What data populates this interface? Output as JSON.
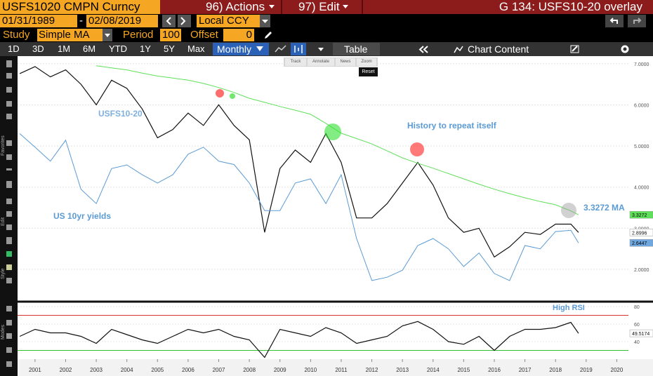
{
  "header": {
    "security": "USFS1020 CMPN Curncy",
    "actions": "96) Actions",
    "edit": "97) Edit",
    "page": "G 134: USFS10-20 overlay"
  },
  "controls": {
    "start_date": "01/31/1989",
    "date_separator": "-",
    "end_date": "02/08/2019",
    "currency": "Local CCY",
    "study_label": "Study",
    "study": "Simple MA",
    "period_label": "Period",
    "period": 100,
    "offset_label": "Offset",
    "offset": 0
  },
  "toolbar": {
    "ranges": [
      "1D",
      "3D",
      "1M",
      "6M",
      "YTD",
      "1Y",
      "5Y",
      "Max"
    ],
    "frequency": "Monthly",
    "table": "Table",
    "chart_content": "Chart Content"
  },
  "chart_tools": {
    "track": "Track",
    "annotate": "Annotate",
    "news": "News",
    "zoom": "Zoom",
    "reset": "Reset"
  },
  "sidebar": {
    "favorites": "Favorites",
    "edit": "Edit",
    "style": "Style",
    "modes": "Modes"
  },
  "chart_data": [
    {
      "type": "line",
      "x": [
        2000.5,
        2001,
        2001.5,
        2002,
        2002.5,
        2003,
        2003.5,
        2004,
        2004.5,
        2005,
        2005.5,
        2006,
        2006.5,
        2007,
        2007.5,
        2008,
        2008.5,
        2009,
        2009.5,
        2010,
        2010.5,
        2011,
        2011.5,
        2012,
        2012.5,
        2013,
        2013.5,
        2014,
        2014.5,
        2015,
        2015.5,
        2016,
        2016.5,
        2017,
        2017.5,
        2018,
        2018.5,
        2018.75
      ],
      "xlim": [
        2000.43,
        2020.38
      ],
      "ylim": [
        1.25,
        7.15
      ],
      "yticks": [
        {
          "value": 2,
          "label": "2.0000"
        },
        {
          "value": 3,
          "label": "3.0000"
        },
        {
          "value": 4,
          "label": "4.0000"
        },
        {
          "value": 5,
          "label": "5.0000"
        },
        {
          "value": 6,
          "label": "6.0000"
        },
        {
          "value": 7,
          "label": "7.0000"
        }
      ],
      "series": [
        {
          "name": "USFS10-20",
          "color": "#111111",
          "values": [
            6.76,
            6.93,
            6.68,
            6.85,
            6.5,
            6.0,
            6.6,
            6.4,
            5.9,
            5.2,
            5.4,
            5.8,
            5.5,
            6.0,
            5.5,
            5.15,
            2.9,
            4.45,
            4.9,
            4.6,
            5.3,
            4.6,
            3.25,
            3.25,
            3.6,
            4.1,
            4.6,
            4.05,
            3.25,
            2.9,
            3.0,
            2.3,
            2.55,
            2.9,
            2.85,
            3.1,
            3.1,
            2.8996
          ]
        },
        {
          "name": "US 10yr yields",
          "color": "#5b9bd5",
          "values": [
            5.3,
            4.97,
            4.63,
            5.14,
            3.95,
            3.6,
            4.45,
            4.54,
            4.3,
            4.1,
            4.3,
            4.8,
            4.97,
            4.63,
            4.55,
            4.1,
            3.43,
            3.43,
            4.1,
            4.2,
            3.6,
            4.3,
            2.75,
            1.73,
            1.81,
            1.98,
            2.58,
            2.75,
            2.5,
            2.07,
            2.4,
            1.9,
            1.73,
            2.58,
            2.5,
            2.92,
            2.95,
            2.6447
          ]
        },
        {
          "name": "3.3272 MA",
          "color": "#5fe05a",
          "values": [
            null,
            null,
            null,
            null,
            null,
            6.95,
            6.9,
            6.85,
            6.77,
            6.7,
            6.65,
            6.6,
            6.52,
            6.42,
            6.3,
            6.16,
            6.06,
            5.96,
            5.87,
            5.77,
            5.55,
            5.31,
            5.18,
            5.05,
            4.88,
            4.71,
            4.58,
            4.46,
            4.33,
            4.2,
            4.07,
            3.95,
            3.84,
            3.74,
            3.65,
            3.57,
            3.42,
            3.3272
          ]
        }
      ],
      "annotations": [
        "History to repeat itself"
      ]
    },
    {
      "type": "line",
      "x": [
        2000.5,
        2001,
        2001.5,
        2002,
        2002.5,
        2003,
        2003.5,
        2004,
        2004.5,
        2005,
        2005.5,
        2006,
        2006.5,
        2007,
        2007.5,
        2008,
        2008.5,
        2009,
        2009.5,
        2010,
        2010.5,
        2011,
        2011.5,
        2012,
        2012.5,
        2013,
        2013.5,
        2014,
        2014.5,
        2015,
        2015.5,
        2016,
        2016.5,
        2017,
        2017.5,
        2018,
        2018.5,
        2018.75
      ],
      "xlim": [
        2000.43,
        2020.38
      ],
      "xticks": [
        2001,
        2002,
        2003,
        2004,
        2005,
        2006,
        2007,
        2008,
        2009,
        2010,
        2011,
        2012,
        2013,
        2014,
        2015,
        2016,
        2017,
        2018,
        2019,
        2020
      ],
      "ylim": [
        20,
        84
      ],
      "yticks": [
        40,
        60,
        80
      ],
      "levels": [
        {
          "value": 70,
          "color": "#e03030"
        },
        {
          "value": 30,
          "color": "#30c030"
        }
      ],
      "series": [
        {
          "color": "#111111",
          "values": [
            46,
            54,
            50,
            50,
            46,
            38,
            54,
            48,
            42,
            38,
            46,
            54,
            50,
            54,
            46,
            42,
            22,
            54,
            50,
            46,
            56,
            50,
            38,
            42,
            46,
            58,
            63,
            54,
            40,
            37,
            46,
            30,
            46,
            54,
            54,
            56,
            62,
            49.5174
          ]
        }
      ],
      "annotations": [
        "High RSI"
      ]
    }
  ]
}
